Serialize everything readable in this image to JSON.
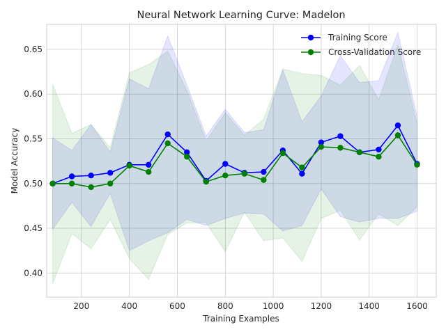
{
  "chart_data": {
    "type": "line",
    "title": "Neural Network Learning Curve: Madelon",
    "xlabel": "Training Examples",
    "ylabel": "Model Accuracy",
    "xlim": [
      55,
      1680
    ],
    "ylim": [
      0.373,
      0.678
    ],
    "xticks": [
      200,
      400,
      600,
      800,
      1000,
      1200,
      1400,
      1600
    ],
    "xtick_labels": [
      "200",
      "400",
      "600",
      "800",
      "1000",
      "1200",
      "1400",
      "1600"
    ],
    "yticks": [
      0.4,
      0.45,
      0.5,
      0.55,
      0.6,
      0.65
    ],
    "ytick_labels": [
      "0.40",
      "0.45",
      "0.50",
      "0.55",
      "0.60",
      "0.65"
    ],
    "grid": true,
    "legend_position": "top-right",
    "x": [
      80,
      160,
      240,
      320,
      400,
      480,
      560,
      640,
      720,
      800,
      880,
      960,
      1040,
      1120,
      1200,
      1280,
      1360,
      1440,
      1520,
      1600
    ],
    "series": [
      {
        "name": "Training Score",
        "color": "#0000ff",
        "fill_color": "#0000ff",
        "values": [
          0.5,
          0.508,
          0.509,
          0.512,
          0.521,
          0.521,
          0.555,
          0.535,
          0.503,
          0.522,
          0.512,
          0.513,
          0.537,
          0.511,
          0.546,
          0.553,
          0.535,
          0.538,
          0.565,
          0.522
        ],
        "upper": [
          0.551,
          0.537,
          0.566,
          0.535,
          0.617,
          0.606,
          0.665,
          0.61,
          0.553,
          0.583,
          0.557,
          0.56,
          0.627,
          0.569,
          0.598,
          0.643,
          0.613,
          0.615,
          0.669,
          0.575
        ],
        "lower": [
          0.449,
          0.479,
          0.452,
          0.489,
          0.425,
          0.436,
          0.445,
          0.46,
          0.453,
          0.461,
          0.467,
          0.466,
          0.447,
          0.453,
          0.494,
          0.463,
          0.457,
          0.461,
          0.461,
          0.469
        ]
      },
      {
        "name": "Cross-Validation Score",
        "color": "#008000",
        "fill_color": "#008000",
        "values": [
          0.5,
          0.5,
          0.496,
          0.5,
          0.52,
          0.513,
          0.545,
          0.53,
          0.502,
          0.509,
          0.511,
          0.504,
          0.534,
          0.518,
          0.541,
          0.54,
          0.535,
          0.53,
          0.554,
          0.521
        ],
        "upper": [
          0.611,
          0.556,
          0.566,
          0.54,
          0.624,
          0.633,
          0.648,
          0.604,
          0.548,
          0.579,
          0.554,
          0.572,
          0.628,
          0.623,
          0.621,
          0.61,
          0.632,
          0.594,
          0.655,
          0.568
        ],
        "lower": [
          0.388,
          0.444,
          0.427,
          0.46,
          0.416,
          0.393,
          0.443,
          0.456,
          0.456,
          0.424,
          0.468,
          0.436,
          0.439,
          0.413,
          0.461,
          0.47,
          0.437,
          0.466,
          0.453,
          0.474
        ]
      }
    ]
  }
}
